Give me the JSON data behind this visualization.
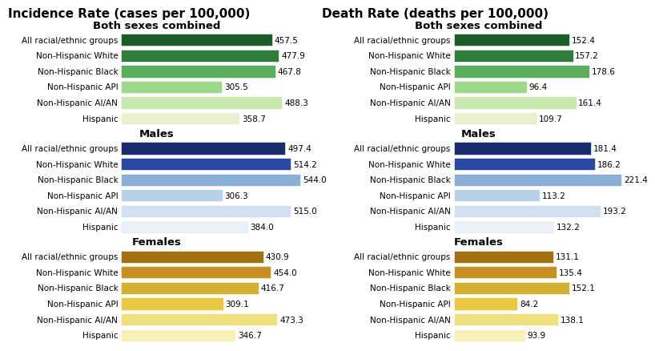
{
  "incidence_title": "Incidence Rate (cases per 100,000)",
  "death_title": "Death Rate (deaths per 100,000)",
  "categories": [
    "All racial/ethnic groups",
    "Non-Hispanic White",
    "Non-Hispanic Black",
    "Non-Hispanic API",
    "Non-Hispanic AI/AN",
    "Hispanic"
  ],
  "groups": [
    "Both sexes combined",
    "Males",
    "Females"
  ],
  "incidence": {
    "Both sexes combined": [
      457.5,
      477.9,
      467.8,
      305.5,
      488.3,
      358.7
    ],
    "Males": [
      497.4,
      514.2,
      544.0,
      306.3,
      515.0,
      384.0
    ],
    "Females": [
      430.9,
      454.0,
      416.7,
      309.1,
      473.3,
      346.7
    ]
  },
  "death": {
    "Both sexes combined": [
      152.4,
      157.2,
      178.6,
      96.4,
      161.4,
      109.7
    ],
    "Males": [
      181.4,
      186.2,
      221.4,
      113.2,
      193.2,
      132.2
    ],
    "Females": [
      131.1,
      135.4,
      152.1,
      84.2,
      138.1,
      93.9
    ]
  },
  "colors": {
    "Both sexes combined": [
      "#1a5c2a",
      "#2e7d3a",
      "#5aad5a",
      "#9dd88a",
      "#c8e8b0",
      "#e8f0d0"
    ],
    "Males": [
      "#1a2c6e",
      "#2a4aa0",
      "#8ab0d8",
      "#b8d0e8",
      "#d0e0f0",
      "#e8f0f8"
    ],
    "Females": [
      "#a07010",
      "#c89020",
      "#d8b030",
      "#e8c840",
      "#f0e080",
      "#f8f0b8"
    ]
  },
  "inc_max": 560,
  "death_max": 240,
  "label_fontsize": 7.5,
  "title_fontsize": 11,
  "group_title_fontsize": 9.5,
  "ytick_fontsize": 7.5
}
